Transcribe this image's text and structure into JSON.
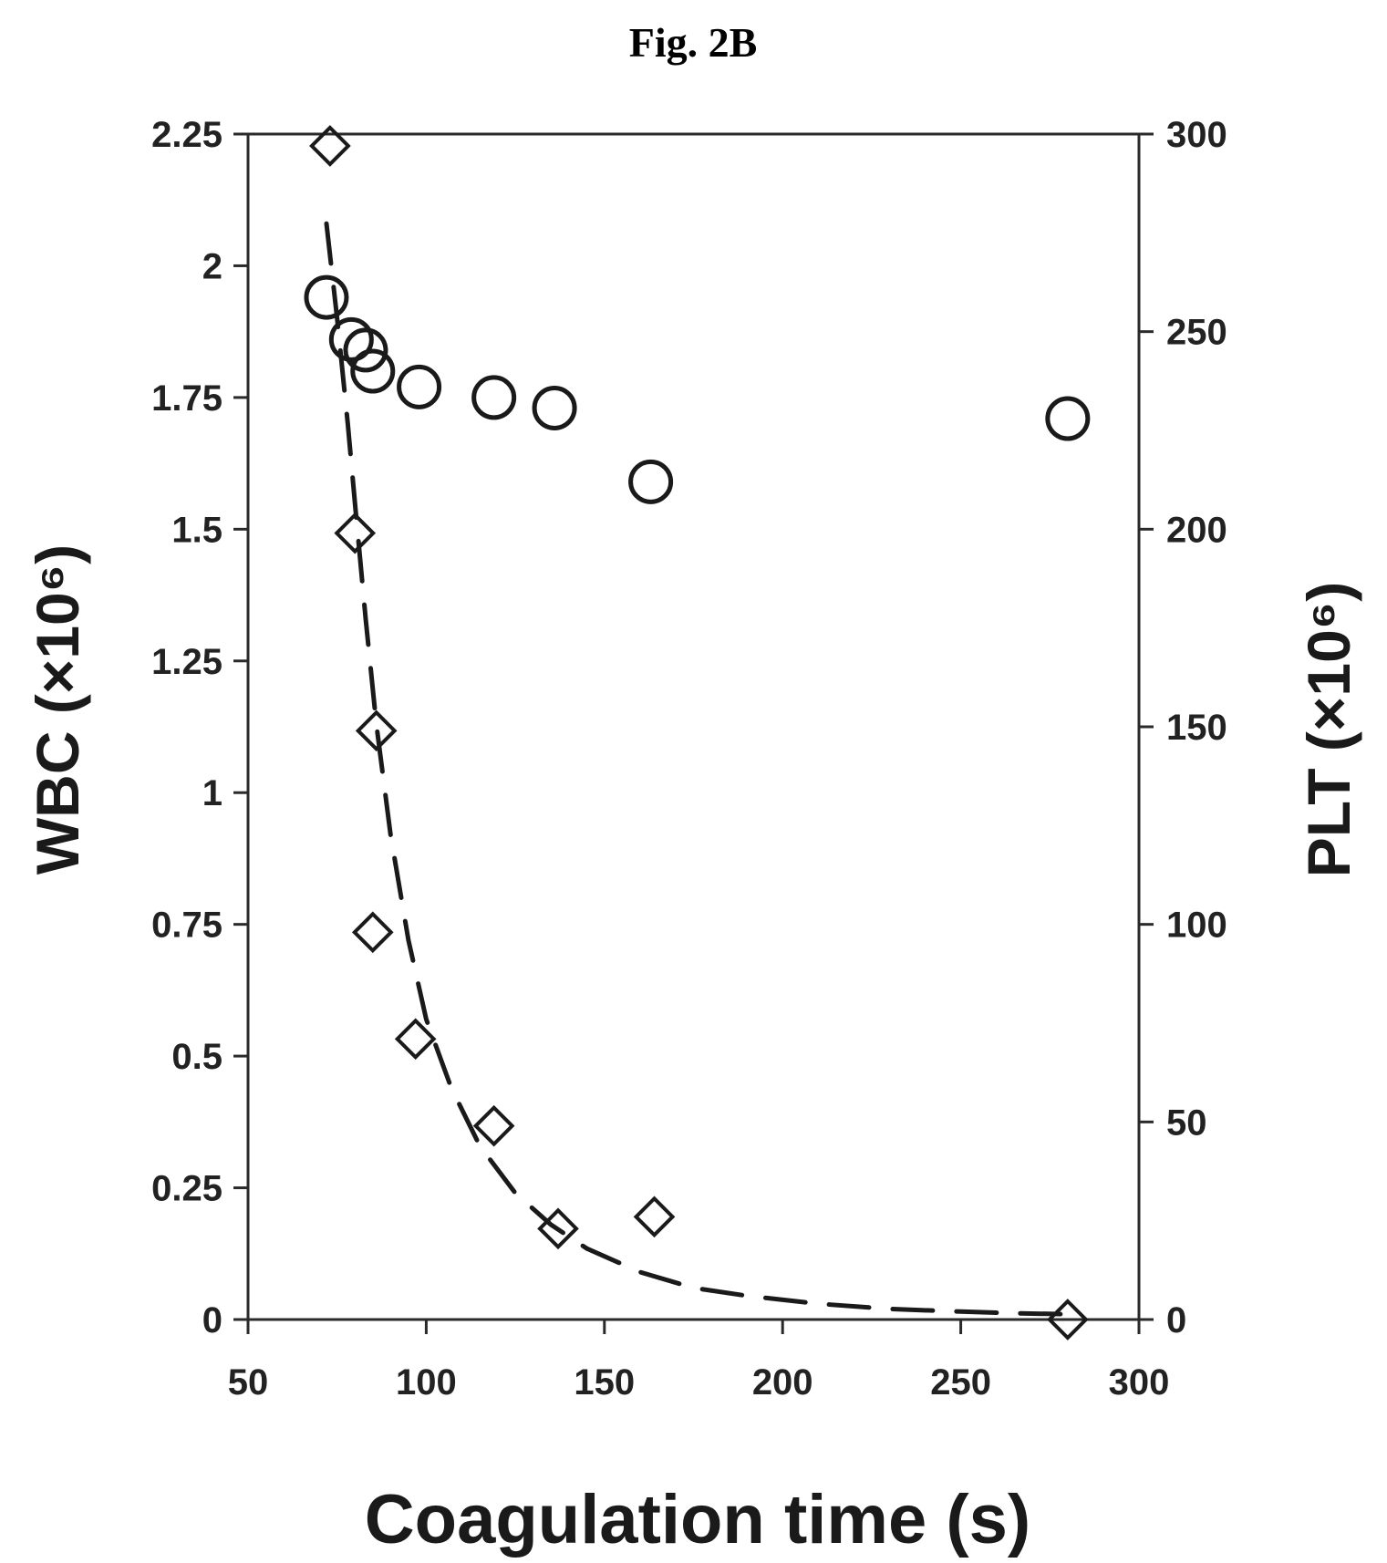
{
  "figure": {
    "label": "Fig. 2B"
  },
  "chart_data": {
    "type": "scatter",
    "xlabel": "Coagulation time (s)",
    "ylabel_left": "WBC (×10⁶)",
    "ylabel_right": "PLT (×10⁶)",
    "xlim": [
      50,
      300
    ],
    "ylim_left": [
      0,
      2.25
    ],
    "ylim_right": [
      0,
      300
    ],
    "x_ticks": [
      50,
      100,
      150,
      200,
      250,
      300
    ],
    "y_ticks_left": [
      0,
      0.25,
      0.5,
      0.75,
      1,
      1.25,
      1.5,
      1.75,
      2,
      2.25
    ],
    "y_tick_labels_left": [
      "0",
      "0.25",
      "0.5",
      "0.75",
      "1",
      "1.25",
      "1.5",
      "1.75",
      "2",
      "2.25"
    ],
    "y_ticks_right": [
      0,
      50,
      100,
      150,
      200,
      250,
      300
    ],
    "grid": false,
    "colors": {
      "ink": "#1a1a1a"
    },
    "series": [
      {
        "axis": "left",
        "marker": "circle",
        "points": [
          {
            "x": 72,
            "y": 1.94
          },
          {
            "x": 79,
            "y": 1.86
          },
          {
            "x": 83,
            "y": 1.84
          },
          {
            "x": 85,
            "y": 1.8
          },
          {
            "x": 98,
            "y": 1.77
          },
          {
            "x": 119,
            "y": 1.75
          },
          {
            "x": 136,
            "y": 1.73
          },
          {
            "x": 163,
            "y": 1.59
          },
          {
            "x": 280,
            "y": 1.71
          }
        ]
      },
      {
        "axis": "right",
        "marker": "diamond",
        "points": [
          {
            "x": 73,
            "y": 297
          },
          {
            "x": 80,
            "y": 199
          },
          {
            "x": 86,
            "y": 149
          },
          {
            "x": 85,
            "y": 98
          },
          {
            "x": 97,
            "y": 71
          },
          {
            "x": 119,
            "y": 49
          },
          {
            "x": 137,
            "y": 23
          },
          {
            "x": 164,
            "y": 26
          },
          {
            "x": 280,
            "y": 0
          }
        ]
      },
      {
        "axis": "left",
        "marker": "dashed-line",
        "fit": "exponential decay",
        "points": [
          {
            "x": 72,
            "y": 2.08
          },
          {
            "x": 75,
            "y": 1.9
          },
          {
            "x": 78,
            "y": 1.7
          },
          {
            "x": 80,
            "y": 1.55
          },
          {
            "x": 83,
            "y": 1.33
          },
          {
            "x": 86,
            "y": 1.13
          },
          {
            "x": 90,
            "y": 0.92
          },
          {
            "x": 95,
            "y": 0.72
          },
          {
            "x": 100,
            "y": 0.57
          },
          {
            "x": 107,
            "y": 0.44
          },
          {
            "x": 115,
            "y": 0.33
          },
          {
            "x": 125,
            "y": 0.24
          },
          {
            "x": 135,
            "y": 0.18
          },
          {
            "x": 145,
            "y": 0.135
          },
          {
            "x": 160,
            "y": 0.09
          },
          {
            "x": 175,
            "y": 0.06
          },
          {
            "x": 190,
            "y": 0.045
          },
          {
            "x": 210,
            "y": 0.03
          },
          {
            "x": 230,
            "y": 0.02
          },
          {
            "x": 250,
            "y": 0.015
          },
          {
            "x": 265,
            "y": 0.012
          },
          {
            "x": 280,
            "y": 0.01
          }
        ]
      }
    ]
  }
}
